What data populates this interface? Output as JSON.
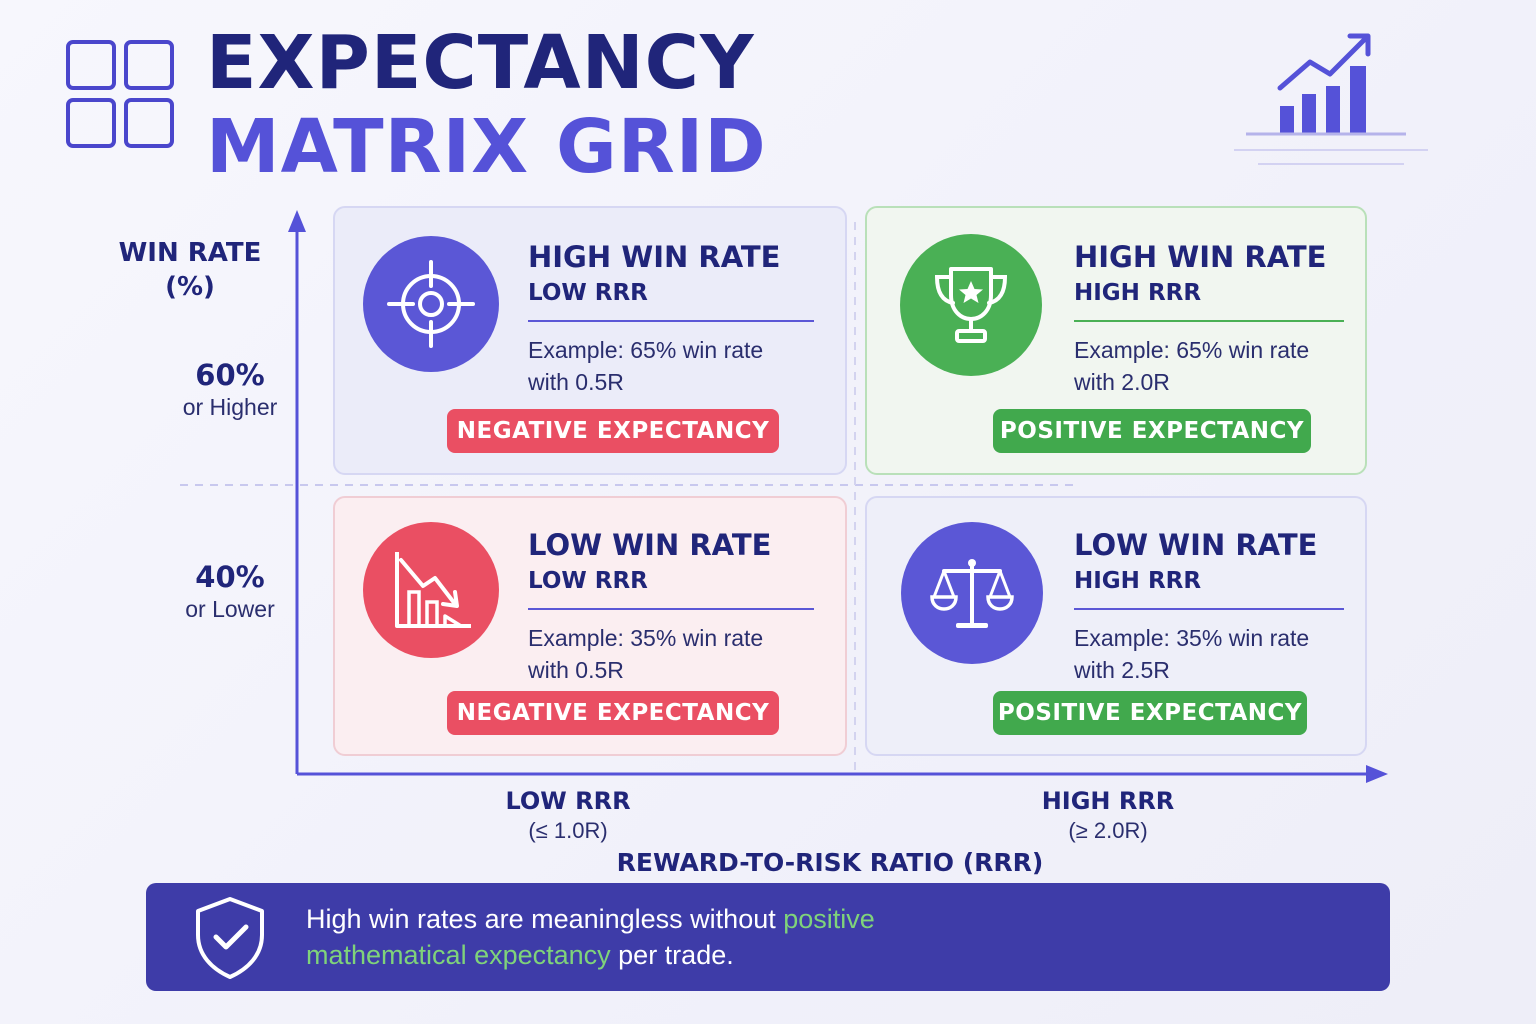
{
  "header": {
    "title_line1": "EXPECTANCY",
    "title_line2": "MATRIX GRID"
  },
  "icons": {
    "logo": "grid-icon",
    "top_right": "bar-chart-growth-icon",
    "banner": "shield-check-icon"
  },
  "colors": {
    "navy": "#20257a",
    "accent": "#5552d8",
    "positive": "#41a94d",
    "negative": "#ea4f63",
    "banner": "#3e3ca8"
  },
  "y_axis": {
    "label": "WIN RATE (%)",
    "label_line1": "WIN RATE",
    "label_line2": "(%)",
    "high_value": "60%",
    "high_note": "or Higher",
    "low_value": "40%",
    "low_note": "or Lower"
  },
  "x_axis": {
    "label": "REWARD-TO-RISK RATIO (RRR)",
    "low_title": "LOW RRR",
    "low_note": "(≤ 1.0R)",
    "high_title": "HIGH RRR",
    "high_note": "(≥ 2.0R)"
  },
  "quadrants": [
    {
      "title": "HIGH WIN RATE",
      "subtitle": "LOW RRR",
      "example_line1": "Example: 65% win rate",
      "example_line2": "with 0.5R",
      "badge": "NEGATIVE EXPECTANCY",
      "icon": "target-crosshair-icon"
    },
    {
      "title": "HIGH WIN RATE",
      "subtitle": "HIGH RRR",
      "example_line1": "Example: 65% win rate",
      "example_line2": "with 2.0R",
      "badge": "POSITIVE EXPECTANCY",
      "icon": "trophy-icon"
    },
    {
      "title": "LOW WIN RATE",
      "subtitle": "LOW RRR",
      "example_line1": "Example: 35% win rate",
      "example_line2": "with 0.5R",
      "badge": "NEGATIVE EXPECTANCY",
      "icon": "declining-chart-icon"
    },
    {
      "title": "LOW WIN RATE",
      "subtitle": "HIGH RRR",
      "example_line1": "Example: 35% win rate",
      "example_line2": "with 2.5R",
      "badge": "POSITIVE EXPECTANCY",
      "icon": "balance-scale-icon"
    }
  ],
  "banner": {
    "text_part1": "High win rates are meaningless without ",
    "text_highlight": "positive mathematical expectancy",
    "text_part2": " per trade."
  }
}
